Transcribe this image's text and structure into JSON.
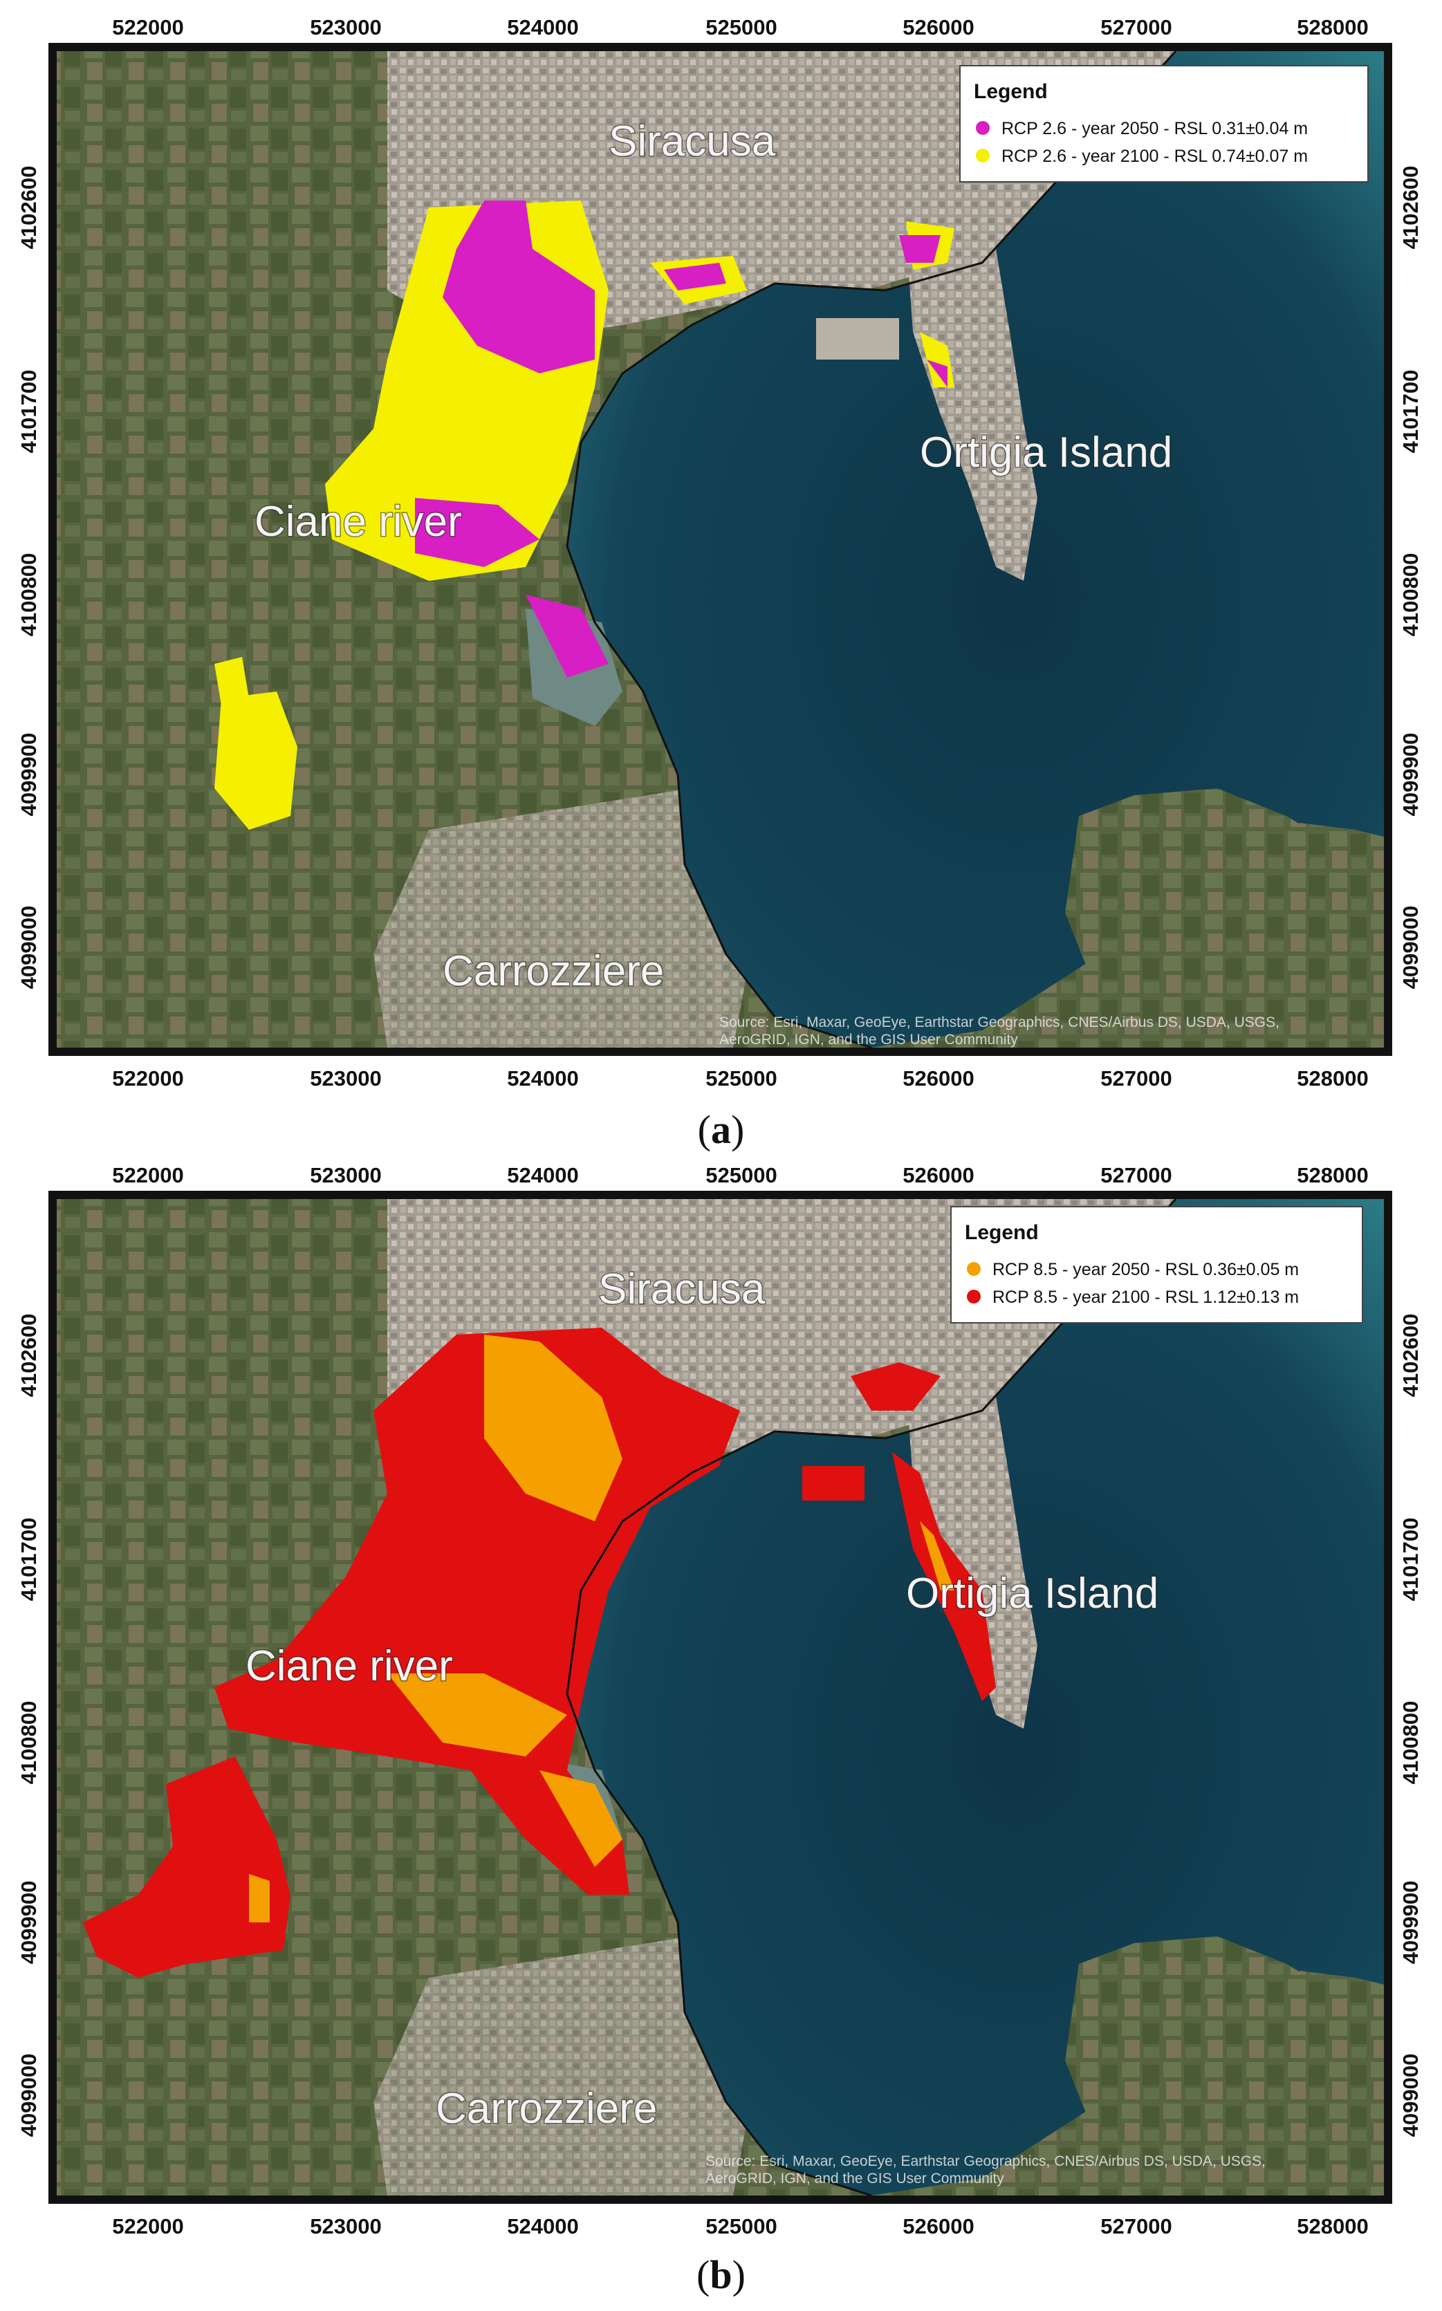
{
  "x_ticks": [
    "522000",
    "523000",
    "524000",
    "525000",
    "526000",
    "527000",
    "528000"
  ],
  "y_ticks": [
    "4102600",
    "4101700",
    "4100800",
    "4099900",
    "4099000"
  ],
  "places": {
    "siracusa": "Siracusa",
    "ortigia": "Ortigia Island",
    "ciane": "Ciane river",
    "carrozziere": "Carrozziere"
  },
  "attribution": {
    "line1": "Source: Esri, Maxar, GeoEye, Earthstar Geographics, CNES/Airbus DS, USDA, USGS,",
    "line2": "AeroGRID, IGN, and the GIS User Community"
  },
  "panels": [
    {
      "caption_letter": "a",
      "legend": {
        "title": "Legend",
        "items": [
          {
            "label": "RCP 2.6 - year 2050 - RSL 0.31±0.04 m",
            "color": "#d81fc4"
          },
          {
            "label": "RCP 2.6 - year 2100 - RSL 0.74±0.07 m",
            "color": "#f5f000"
          }
        ]
      }
    },
    {
      "caption_letter": "b",
      "legend": {
        "title": "Legend",
        "items": [
          {
            "label": "RCP 8.5 - year 2050 - RSL 0.36±0.05 m",
            "color": "#f5a000"
          },
          {
            "label": "RCP 8.5 - year 2100 - RSL 1.12±0.13 m",
            "color": "#e01010"
          }
        ]
      }
    }
  ],
  "colors": {
    "sea_deep": "#0f3a4e",
    "sea_shallow": "#2d7d8a",
    "land": "#5b6a48",
    "urban": "#a49e94"
  }
}
